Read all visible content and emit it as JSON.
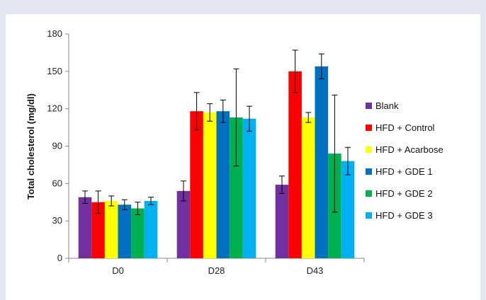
{
  "chart_data": {
    "type": "bar",
    "title": "",
    "xlabel": "",
    "ylabel": "Total cholesterol (mg/dl)",
    "ylim": [
      0,
      180
    ],
    "yticks": [
      "0",
      "30",
      "60",
      "90",
      "120",
      "150",
      "180"
    ],
    "categories": [
      "D0",
      "D28",
      "D43"
    ],
    "legend_position": "right",
    "grid": false,
    "series": [
      {
        "name": "Blank",
        "color": "#7030a0",
        "values": [
          49,
          54,
          59
        ],
        "errors": [
          5,
          8,
          7
        ]
      },
      {
        "name": "HFD + Control",
        "color": "#ff0000",
        "values": [
          45,
          118,
          150
        ],
        "errors": [
          9,
          15,
          17
        ]
      },
      {
        "name": "HFD + Acarbose",
        "color": "#ffff00",
        "values": [
          46,
          117,
          113
        ],
        "errors": [
          4,
          7,
          4
        ]
      },
      {
        "name": "HFD + GDE 1",
        "color": "#0070c0",
        "values": [
          43,
          118,
          154
        ],
        "errors": [
          4,
          9,
          10
        ]
      },
      {
        "name": "HFD + GDE 2",
        "color": "#00b050",
        "values": [
          40,
          113,
          84
        ],
        "errors": [
          5,
          39,
          47
        ]
      },
      {
        "name": "HFD + GDE 3",
        "color": "#00b0f0",
        "values": [
          46,
          112,
          78
        ],
        "errors": [
          3,
          10,
          11
        ]
      }
    ]
  }
}
